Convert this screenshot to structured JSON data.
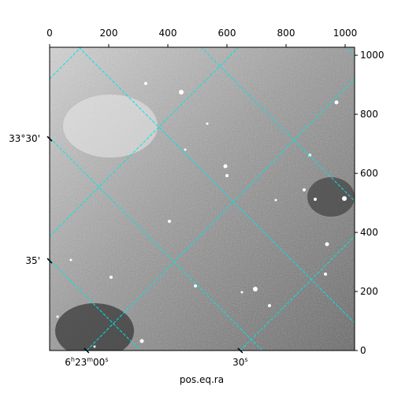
{
  "chart_data": {
    "type": "image",
    "xlabel": "pos.eq.ra",
    "xlim": [
      0,
      1032
    ],
    "xticks": [
      0,
      200,
      400,
      600,
      800,
      1000
    ],
    "ylim": [
      0,
      1027
    ],
    "yticks": [
      0,
      200,
      400,
      600,
      800,
      1000
    ],
    "world_xticks": [
      {
        "value": 125,
        "label": "6h23m00s"
      },
      {
        "value": 645,
        "label": "30s"
      }
    ],
    "world_yticks": [
      {
        "value": 717,
        "label": "33°30'"
      },
      {
        "value": 304,
        "label": "35'"
      }
    ],
    "grid_color": "#00e5e5"
  }
}
